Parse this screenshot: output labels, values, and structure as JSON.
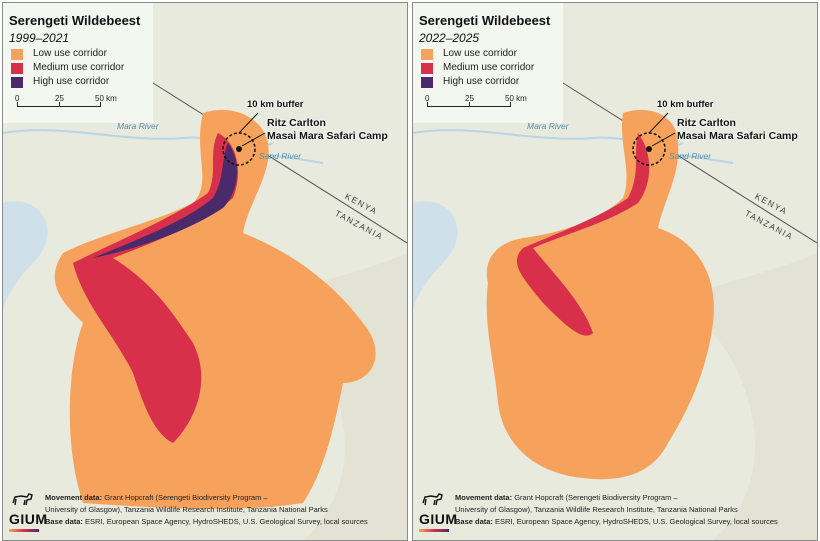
{
  "panels": [
    {
      "title": "Serengeti Wildebeest",
      "period": "1999–2021",
      "legend": [
        {
          "label": "Low use corridor",
          "color": "#f7a25c"
        },
        {
          "label": "Medium use corridor",
          "color": "#d8304b"
        },
        {
          "label": "High use corridor",
          "color": "#4a2a6b"
        }
      ],
      "scale": {
        "ticks": [
          "0",
          "25",
          "50 km"
        ]
      },
      "buffer_label": "10 km buffer",
      "camp_label_1": "Ritz Carlton",
      "camp_label_2": "Masai Mara Safari Camp",
      "river_1": "Mara River",
      "river_2": "Sand River",
      "country_1": "KENYA",
      "country_2": "TANZANIA",
      "credits": {
        "movement_label": "Movement data:",
        "movement_text": "Grant Hopcraft (Serengeti Biodiversity Program –",
        "movement_text_2": "University of Glasgow), Tanzania Wildlife Research Institute, Tanzania National Parks",
        "base_label": "Base data:",
        "base_text": "ESRI, European Space Agency, HydroSHEDS, U.S. Geological Survey, local sources"
      },
      "logo": "GIUM"
    },
    {
      "title": "Serengeti Wildebeest",
      "period": "2022–2025",
      "legend": [
        {
          "label": "Low use corridor",
          "color": "#f7a25c"
        },
        {
          "label": "Medium use corridor",
          "color": "#d8304b"
        },
        {
          "label": "High use corridor",
          "color": "#4a2a6b"
        }
      ],
      "scale": {
        "ticks": [
          "0",
          "25",
          "50 km"
        ]
      },
      "buffer_label": "10 km buffer",
      "camp_label_1": "Ritz Carlton",
      "camp_label_2": "Masai Mara Safari Camp",
      "river_1": "Mara River",
      "river_2": "Sand River",
      "country_1": "KENYA",
      "country_2": "TANZANIA",
      "credits": {
        "movement_label": "Movement data:",
        "movement_text": "Grant Hopcraft (Serengeti Biodiversity Program –",
        "movement_text_2": "University of Glasgow), Tanzania Wildlife Research Institute, Tanzania National Parks",
        "base_label": "Base data:",
        "base_text": "ESRI, European Space Agency, HydroSHEDS, U.S. Geological Survey, local sources"
      },
      "logo": "GIUM"
    }
  ]
}
